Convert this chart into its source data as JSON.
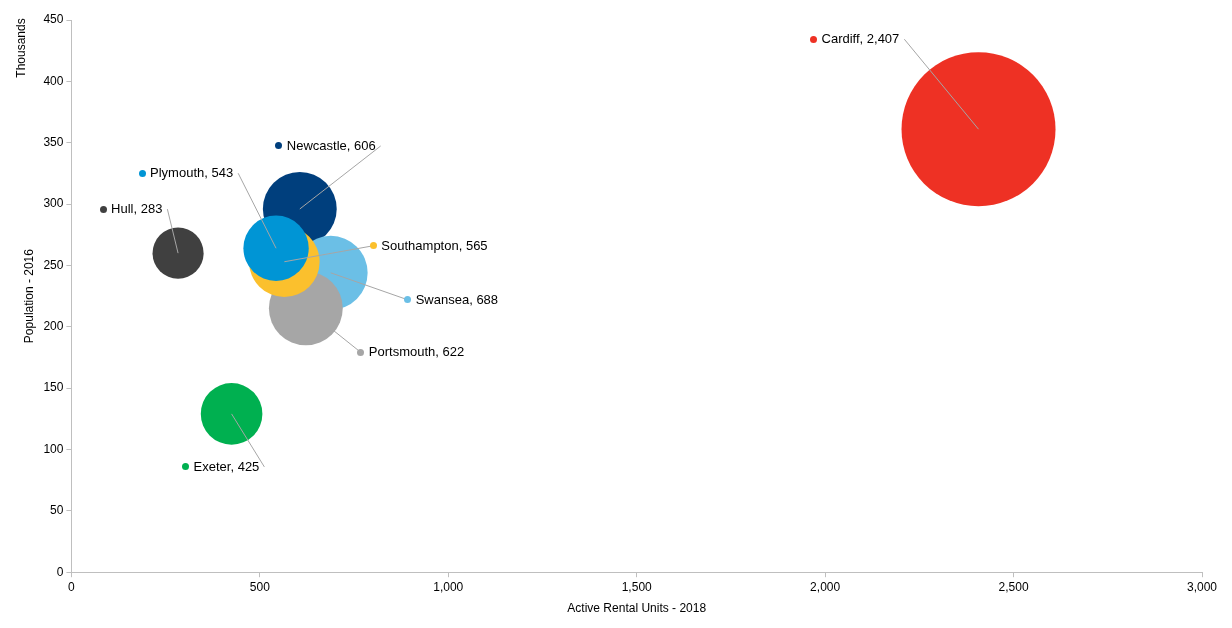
{
  "chart_data": {
    "type": "bubble",
    "xlabel": "Active Rental Units - 2018",
    "ylabel": "Population - 2016",
    "annotations": [
      "Thousands",
      {
        "text": "Newcastle, 606",
        "x": 606,
        "y": 296
      },
      {
        "text": "Swansea, 688",
        "x": 688,
        "y": 244
      },
      {
        "text": "Portsmouth, 622",
        "x": 622,
        "y": 215
      },
      {
        "text": "Southampton, 565",
        "x": 565,
        "y": 253
      },
      {
        "text": "Plymouth, 543",
        "x": 543,
        "y": 264
      },
      {
        "text": "Hull, 283",
        "x": 283,
        "y": 260
      },
      {
        "text": "Exeter, 425",
        "x": 425,
        "y": 129
      },
      {
        "text": "Cardiff, 2,407",
        "x": 2407,
        "y": 361
      }
    ],
    "xlim": [
      0,
      3000
    ],
    "xticks": [
      0,
      {
        "value": 500,
        "label": "500"
      },
      {
        "value": 1000,
        "label": "1,000"
      },
      {
        "value": 1500,
        "label": "1,500"
      },
      {
        "value": 2000,
        "label": "2,000"
      },
      {
        "value": 2500,
        "label": "2,500"
      },
      {
        "value": 3000,
        "label": "3,000"
      }
    ],
    "ylim": [
      0,
      450
    ],
    "yticks": [
      0,
      50,
      100,
      150,
      200,
      250,
      300,
      350,
      400,
      450
    ],
    "grid": false,
    "legend": false,
    "series": [
      {
        "color": "#003f7d",
        "x": [
          606
        ],
        "values": [
          296
        ],
        "sizes": [
          0.23
        ]
      },
      {
        "color": "#6bbfe6",
        "x": [
          688
        ],
        "values": [
          244
        ],
        "sizes": [
          0.23
        ]
      },
      {
        "color": "#a6a6a6",
        "x": [
          622
        ],
        "values": [
          215
        ],
        "sizes": [
          0.23
        ]
      },
      {
        "color": "#fbc02d",
        "x": [
          565
        ],
        "values": [
          253
        ],
        "sizes": [
          0.21
        ]
      },
      {
        "color": "#0095d5",
        "x": [
          543
        ],
        "values": [
          264
        ],
        "sizes": [
          0.18
        ]
      },
      {
        "color": "#404040",
        "x": [
          283
        ],
        "values": [
          260
        ],
        "sizes": [
          0.11
        ]
      },
      {
        "color": "#00b050",
        "x": [
          425
        ],
        "values": [
          129
        ],
        "sizes": [
          0.16
        ]
      },
      {
        "color": "#ee3124",
        "x": [
          2407
        ],
        "values": [
          361
        ],
        "sizes": [
          1
        ]
      }
    ]
  }
}
